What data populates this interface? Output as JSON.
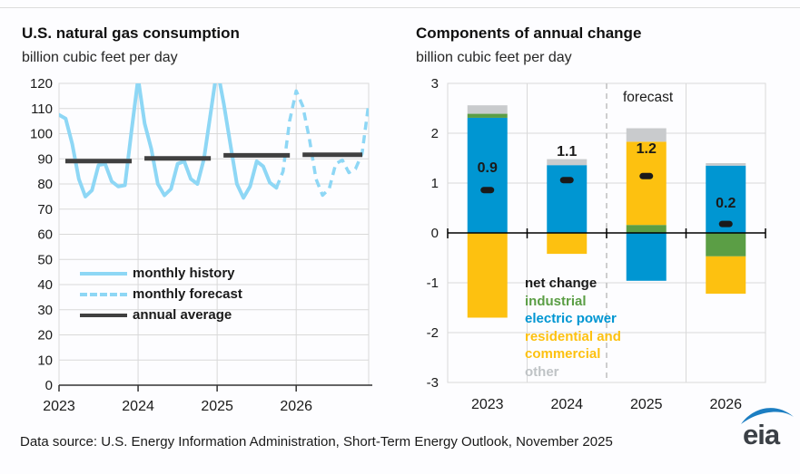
{
  "page": {
    "footer_source": "Data source: U.S. Energy Information Administration, Short-Term Energy Outlook, November 2025",
    "logo_text": "eia"
  },
  "colors": {
    "history_line": "#8ed7f5",
    "annual_average": "#404040",
    "net_change": "#1a1a1a",
    "industrial": "#5b9e45",
    "electric_power": "#0096d2",
    "residential_commercial": "#fdc110",
    "other": "#c9cbcd",
    "other_text": "#bfc3c6",
    "grid": "#d9d9d9",
    "axis": "#333333",
    "divider": "#bfbfbf",
    "text": "#1a1a1a",
    "logo_blue": "#1c7ec2",
    "logo_dark": "#3b4046"
  },
  "chart_data": [
    {
      "type": "line",
      "title": "U.S. natural gas consumption",
      "subtitle": "billion cubic feet per day",
      "ylim": [
        0,
        120
      ],
      "ytick_step": 10,
      "years": [
        2023,
        2024,
        2025,
        2026
      ],
      "legend": [
        {
          "label": "monthly history",
          "style": "solid",
          "color_key": "history_line"
        },
        {
          "label": "monthly forecast",
          "style": "dashed",
          "color_key": "history_line"
        },
        {
          "label": "annual average",
          "style": "solid",
          "color_key": "annual_average"
        }
      ],
      "monthly_start": "2023-01",
      "history_end_index": 33,
      "monthly_values": [
        107.5,
        106,
        96,
        82,
        75,
        77.5,
        87.5,
        88,
        81,
        79,
        79.5,
        101,
        122,
        104,
        94,
        80,
        75.5,
        78,
        88,
        89,
        82,
        80,
        90,
        108,
        126,
        112,
        96,
        80,
        74.5,
        79,
        89,
        87,
        80.5,
        78.5,
        85,
        105,
        117,
        111,
        98,
        82,
        75.5,
        78,
        88,
        89.5,
        84.5,
        86,
        92,
        112
      ],
      "annual_averages": [
        {
          "year": 2023,
          "value": 89.1
        },
        {
          "year": 2024,
          "value": 90.2
        },
        {
          "year": 2025,
          "value": 91.4
        },
        {
          "year": 2026,
          "value": 91.6
        }
      ]
    },
    {
      "type": "bar",
      "title": "Components of annual change",
      "subtitle": "billion cubic feet per day",
      "ylim": [
        -3,
        3
      ],
      "ytick_step": 1,
      "forecast_label": "forecast",
      "forecast_divider_after_year": 2024,
      "categories": [
        2023,
        2024,
        2025,
        2026
      ],
      "legend": [
        {
          "label": "net change",
          "color_key": "net_change"
        },
        {
          "label": "industrial",
          "color_key": "industrial"
        },
        {
          "label": "electric power",
          "color_key": "electric_power"
        },
        {
          "label": "residential and commercial",
          "color_key": "residential_commercial"
        },
        {
          "label": "other",
          "color_key": "other_text"
        }
      ],
      "bars": [
        {
          "year": 2023,
          "net_label": "0.9",
          "label_value": 1.31,
          "segments": [
            {
              "name": "electric_power",
              "value": 2.31
            },
            {
              "name": "industrial",
              "value": 0.08
            },
            {
              "name": "other",
              "value": 0.17
            },
            {
              "name": "residential_commercial",
              "value": -1.7
            }
          ]
        },
        {
          "year": 2024,
          "net_label": "1.1",
          "label_value": 1.64,
          "segments": [
            {
              "name": "electric_power",
              "value": 1.36
            },
            {
              "name": "other",
              "value": 0.12
            },
            {
              "name": "residential_commercial",
              "value": -0.42
            }
          ]
        },
        {
          "year": 2025,
          "net_label": "1.2",
          "label_value": 1.69,
          "segments": [
            {
              "name": "industrial",
              "value": 0.16
            },
            {
              "name": "residential_commercial",
              "value": 1.67
            },
            {
              "name": "other",
              "value": 0.27
            },
            {
              "name": "electric_power",
              "value": -0.96
            }
          ]
        },
        {
          "year": 2026,
          "net_label": "0.2",
          "label_value": 0.6,
          "segments": [
            {
              "name": "electric_power",
              "value": 1.35
            },
            {
              "name": "other",
              "value": 0.05
            },
            {
              "name": "industrial",
              "value": -0.47
            },
            {
              "name": "residential_commercial",
              "value": -0.75
            }
          ]
        }
      ]
    }
  ]
}
